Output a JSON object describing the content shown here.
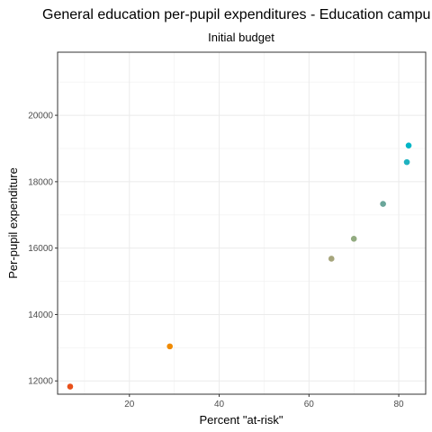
{
  "chart_data": {
    "type": "scatter",
    "title": "General education per-pupil expenditures - Education campu",
    "subtitle": "Initial budget",
    "xlabel": "Percent \"at-risk\"",
    "ylabel": "Per-pupil expenditure",
    "xlim": [
      4,
      86
    ],
    "ylim": [
      11600,
      21900
    ],
    "xticks": [
      20,
      40,
      60,
      80
    ],
    "yticks": [
      12000,
      14000,
      16000,
      18000,
      20000
    ],
    "xtick_labels": [
      "20",
      "40",
      "60",
      "80"
    ],
    "ytick_labels": [
      "12000",
      "14000",
      "16000",
      "18000",
      "20000"
    ],
    "grid": true,
    "legend": "none",
    "points": [
      {
        "x": 6.8,
        "y": 11830,
        "color": "#e8501a"
      },
      {
        "x": 29.0,
        "y": 13040,
        "color": "#f08a00"
      },
      {
        "x": 65.0,
        "y": 15680,
        "color": "#a6a57c"
      },
      {
        "x": 70.0,
        "y": 16280,
        "color": "#92ab80"
      },
      {
        "x": 76.5,
        "y": 17330,
        "color": "#6aa69a"
      },
      {
        "x": 81.8,
        "y": 18590,
        "color": "#1fb2c0"
      },
      {
        "x": 82.2,
        "y": 19090,
        "color": "#00b5c6"
      }
    ]
  }
}
